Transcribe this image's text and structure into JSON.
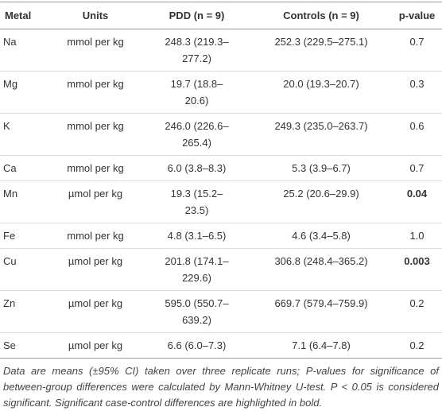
{
  "table": {
    "header": [
      "Metal",
      "Units",
      "PDD (n = 9)",
      "Controls (n = 9)",
      "p-value"
    ],
    "rows": [
      {
        "cells": [
          "Na",
          "mmol per kg",
          "248.3 (219.3–277.2)",
          "252.3 (229.5–275.1)",
          "0.7"
        ],
        "bold_p": false
      },
      {
        "cells": [
          "Mg",
          "mmol per kg",
          "19.7 (18.8–20.6)",
          "20.0 (19.3–20.7)",
          "0.3"
        ],
        "bold_p": false
      },
      {
        "cells": [
          "K",
          "mmol per kg",
          "246.0 (226.6–265.4)",
          "249.3 (235.0–263.7)",
          "0.6"
        ],
        "bold_p": false
      },
      {
        "cells": [
          "Ca",
          "mmol per kg",
          "6.0 (3.8–8.3)",
          "5.3 (3.9–6.7)",
          "0.7"
        ],
        "bold_p": false
      },
      {
        "cells": [
          "Mn",
          "µmol per kg",
          "19.3 (15.2–23.5)",
          "25.2 (20.6–29.9)",
          "0.04"
        ],
        "bold_p": true
      },
      {
        "cells": [
          "Fe",
          "mmol per kg",
          "4.8 (3.1–6.5)",
          "4.6 (3.4–5.8)",
          "1.0"
        ],
        "bold_p": false
      },
      {
        "cells": [
          "Cu",
          "µmol per kg",
          "201.8 (174.1–229.6)",
          "306.8 (248.4–365.2)",
          "0.003"
        ],
        "bold_p": true
      },
      {
        "cells": [
          "Zn",
          "µmol per kg",
          "595.0 (550.7–639.2)",
          "669.7 (579.4–759.9)",
          "0.2"
        ],
        "bold_p": false
      },
      {
        "cells": [
          "Se",
          "µmol per kg",
          "6.6 (6.0–7.3)",
          "7.1 (6.4–7.8)",
          "0.2"
        ],
        "bold_p": false
      }
    ],
    "footnote": "Data are means (±95% CI) taken over three replicate runs; P-values for significance of between-group differences were calculated by Mann-Whitney U-test. P < 0.05 is considered significant. Significant case-control differences are highlighted in bold."
  }
}
